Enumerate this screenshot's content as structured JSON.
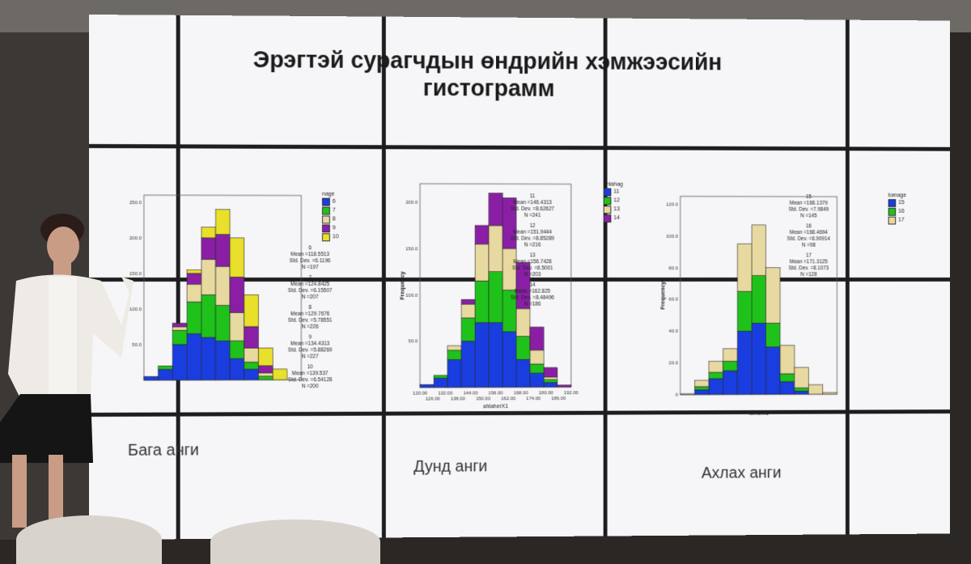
{
  "slide": {
    "title_line1": "Эрэгтэй сурагчдын өндрийн хэмжээсийн",
    "title_line2": "гистограмм"
  },
  "colors": {
    "blue": "#1a3de0",
    "green": "#1fc21a",
    "tan": "#e8d9a0",
    "purple": "#8a1fa6",
    "yellow": "#e8e02a"
  },
  "chart_data": [
    {
      "type": "bar",
      "stacked": true,
      "caption": "Бага анги",
      "legend_title": "nage",
      "series": [
        {
          "name": "6",
          "color": "#1a3de0",
          "values": [
            5,
            15,
            50,
            65,
            60,
            55,
            30,
            15,
            0,
            0,
            0
          ]
        },
        {
          "name": "7",
          "color": "#1fc21a",
          "values": [
            0,
            5,
            20,
            45,
            60,
            50,
            25,
            10,
            5,
            0,
            0
          ]
        },
        {
          "name": "8",
          "color": "#e8d9a0",
          "values": [
            0,
            0,
            5,
            25,
            50,
            55,
            40,
            20,
            5,
            0,
            0
          ]
        },
        {
          "name": "9",
          "color": "#8a1fa6",
          "values": [
            0,
            0,
            5,
            15,
            30,
            45,
            50,
            30,
            10,
            0,
            0
          ]
        },
        {
          "name": "10",
          "color": "#e8e02a",
          "values": [
            0,
            0,
            0,
            5,
            15,
            35,
            55,
            45,
            25,
            15,
            0
          ]
        }
      ],
      "stats": [
        {
          "group": "6",
          "mean": "Mean =118.5513",
          "sd": "Std. Dev. =6.1196",
          "n": "N =197"
        },
        {
          "group": "7",
          "mean": "Mean =124.8425",
          "sd": "Std. Dev. =6.15507",
          "n": "N =207"
        },
        {
          "group": "8",
          "mean": "Mean =129.7676",
          "sd": "Std. Dev. =5.78551",
          "n": "N =226"
        },
        {
          "group": "9",
          "mean": "Mean =134.4313",
          "sd": "Std. Dev. =5.88269",
          "n": "N =227"
        },
        {
          "group": "10",
          "mean": "Mean =139.537",
          "sd": "Std. Dev. =6.54128",
          "n": "N =200"
        }
      ],
      "ylim": [
        0,
        260
      ],
      "y_ticks": [
        "50.0",
        "100.0",
        "150.0",
        "200.0",
        "250.0"
      ]
    },
    {
      "type": "bar",
      "stacked": true,
      "caption": "Дунд анги",
      "ylabel": "Frequency",
      "xlabel": "ahlaherX1",
      "legend_title": "ahlahag",
      "series": [
        {
          "name": "11",
          "color": "#1a3de0",
          "values": [
            3,
            10,
            30,
            50,
            70,
            70,
            60,
            30,
            15,
            5,
            0
          ]
        },
        {
          "name": "12",
          "color": "#1fc21a",
          "values": [
            0,
            3,
            10,
            25,
            45,
            55,
            45,
            25,
            10,
            3,
            0
          ]
        },
        {
          "name": "13",
          "color": "#e8d9a0",
          "values": [
            0,
            0,
            5,
            15,
            40,
            50,
            45,
            30,
            15,
            3,
            0
          ]
        },
        {
          "name": "14",
          "color": "#8a1fa6",
          "values": [
            0,
            0,
            0,
            5,
            20,
            35,
            55,
            50,
            25,
            10,
            2
          ]
        }
      ],
      "stats": [
        {
          "group": "11",
          "mean": "Mean =146.4313",
          "sd": "Std. Dev. =8.62627",
          "n": "N =241"
        },
        {
          "group": "12",
          "mean": "Mean =151.9444",
          "sd": "Std. Dev. =8.85289",
          "n": "N =216"
        },
        {
          "group": "13",
          "mean": "Mean =156.7426",
          "sd": "Std. Dev. =8.5001",
          "n": "N =203"
        },
        {
          "group": "14",
          "mean": "Mean =162.825",
          "sd": "Std. Dev. =8.48496",
          "n": "N =186"
        }
      ],
      "ylim": [
        0,
        220
      ],
      "y_ticks": [
        "50.0",
        "100.0",
        "150.0",
        "200.0"
      ],
      "x_ticks": [
        "120.00",
        "126.00",
        "132.00",
        "138.00",
        "144.00",
        "150.00",
        "156.00",
        "162.00",
        "168.00",
        "174.00",
        "180.00",
        "186.00",
        "192.00"
      ]
    },
    {
      "type": "bar",
      "stacked": true,
      "caption": "Ахлах анги",
      "ylabel": "Frequency",
      "xlabel": "tomerx1",
      "legend_title": "tomage",
      "series": [
        {
          "name": "15",
          "color": "#1a3de0",
          "values": [
            0,
            3,
            10,
            15,
            40,
            45,
            30,
            8,
            2,
            0,
            0
          ]
        },
        {
          "name": "16",
          "color": "#1fc21a",
          "values": [
            0,
            2,
            4,
            6,
            25,
            30,
            15,
            5,
            2,
            0,
            0
          ]
        },
        {
          "name": "17",
          "color": "#e8d9a0",
          "values": [
            0.5,
            4,
            7,
            8,
            30,
            32,
            35,
            18,
            13,
            6,
            1
          ]
        }
      ],
      "stats": [
        {
          "group": "15",
          "mean": "Mean =168.1379",
          "sd": "Std. Dev. =7.9849",
          "n": "N =145"
        },
        {
          "group": "16",
          "mean": "Mean =168.4694",
          "sd": "Std. Dev. =6.90914",
          "n": "N =98"
        },
        {
          "group": "17",
          "mean": "Mean =171.3125",
          "sd": "Std. Dev. =8.1073",
          "n": "N =128"
        }
      ],
      "ylim": [
        0,
        125
      ],
      "y_ticks": [
        "0",
        "20.0",
        "40.0",
        "60.0",
        "80.0",
        "100.0",
        "120.0"
      ]
    }
  ]
}
